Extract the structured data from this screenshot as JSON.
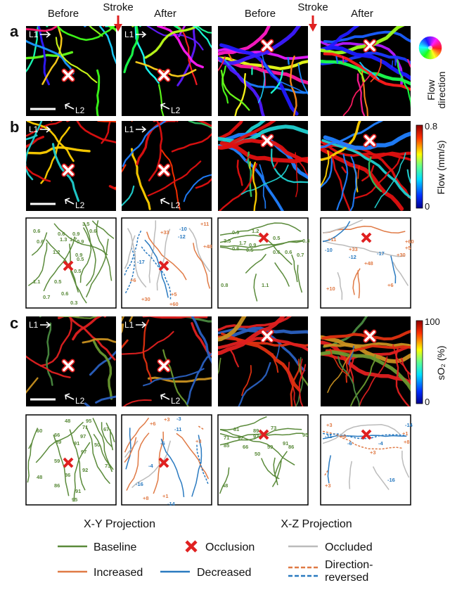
{
  "column_headers": [
    "Before",
    "Stroke",
    "After",
    "Before",
    "Stroke",
    "After"
  ],
  "panel_labels": [
    "a",
    "b",
    "c"
  ],
  "vessel_labels": [
    "L1",
    "L2"
  ],
  "colorbars": {
    "direction": {
      "label_lines": [
        "Flow",
        "direction"
      ]
    },
    "flow": {
      "label": "Flow (mm/s)",
      "max": "0.8",
      "min": "0"
    },
    "so2": {
      "label": "sO₂ (%)",
      "max": "100",
      "min": "0"
    }
  },
  "tracings": {
    "flow_xy_before": [
      "0.6",
      "3.5",
      "0.6",
      "1.3",
      "0.9",
      "1.7",
      "0.9",
      "0.6",
      "1.2",
      "0.6",
      "0.9",
      "0.5",
      "1.1",
      "0.5",
      "0.5",
      "0.7",
      "0.6",
      "0.3"
    ],
    "flow_xy_after": [
      "+11",
      "+33",
      "-10",
      "-12",
      "+48",
      "-17",
      "+6",
      "+30",
      "+5",
      "+60"
    ],
    "flow_xz_before": [
      "0.9",
      "1.2",
      "3.5",
      "1.7",
      "0.9",
      "0.5",
      "0.3",
      "0.6",
      "0.5",
      "0.6",
      "0.6",
      "0.7",
      "0.8",
      "1.1"
    ],
    "flow_xz_after": [
      "+11",
      "+33",
      "-10",
      "-12",
      "+60",
      "+5",
      "+30",
      "-17",
      "+48",
      "+6",
      "+10"
    ],
    "so2_xy_before": [
      "48",
      "95",
      "60",
      "71",
      "67",
      "66",
      "97",
      "89",
      "91",
      "50",
      "97",
      "59",
      "73",
      "92",
      "86",
      "48",
      "86",
      "91",
      "95"
    ],
    "so2_xy_after": [
      "+3",
      "-3",
      "+6",
      "-11",
      "-6",
      "+3",
      "-4",
      "-16",
      "+8",
      "+1",
      "-14"
    ],
    "so2_xz_before": [
      "81",
      "89",
      "73",
      "95",
      "71",
      "97",
      "97",
      "91",
      "85",
      "66",
      "59",
      "86",
      "50",
      "48"
    ],
    "so2_xz_after": [
      "+3",
      "-14",
      "-11",
      "+6",
      "+1",
      "-6",
      "-4",
      "+8",
      "+3",
      "+3",
      "-16"
    ]
  },
  "projections": [
    "X-Y Projection",
    "X-Z Projection"
  ],
  "legend": {
    "baseline": "Baseline",
    "occlusion": "Occlusion",
    "occluded": "Occluded",
    "increased": "Increased",
    "decreased": "Decreased",
    "reversed_lines": [
      "Direction-",
      "reversed"
    ]
  }
}
